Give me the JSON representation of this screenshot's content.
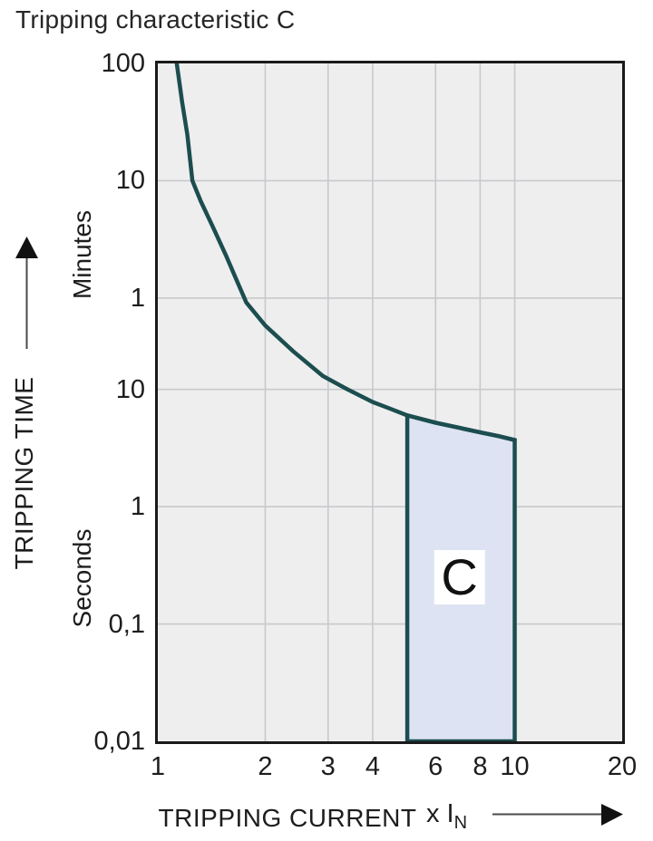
{
  "title": "Tripping characteristic C",
  "colors": {
    "curve": "#1c4d4f",
    "region_fill": "#dde3f2",
    "plot_bg": "#eeeeef",
    "grid": "#c8c9cb",
    "border": "#1a1a1a",
    "arrow_line": "#4a4a4a",
    "text": "#1d1d1d"
  },
  "chart_data": {
    "type": "line",
    "title": "Tripping characteristic C",
    "grid": true,
    "x_axis": {
      "label": "TRIPPING CURRENT",
      "unit_prefix": "x I",
      "unit_sub": "N",
      "scale": "log",
      "range": [
        1,
        20
      ],
      "ticks": [
        {
          "label": "1",
          "value": 1
        },
        {
          "label": "2",
          "value": 2
        },
        {
          "label": "3",
          "value": 3
        },
        {
          "label": "4",
          "value": 4
        },
        {
          "label": "6",
          "value": 6
        },
        {
          "label": "8",
          "value": 8
        },
        {
          "label": "10",
          "value": 10
        },
        {
          "label": "20",
          "value": 20
        }
      ]
    },
    "y_axis": {
      "label": "TRIPPING TIME",
      "scale": "log",
      "unit_labels": [
        "Minutes",
        "Seconds"
      ],
      "range_seconds": [
        6000,
        0.01
      ],
      "ticks": [
        {
          "label": "100",
          "seconds": 6000,
          "unit": "minutes"
        },
        {
          "label": "10",
          "seconds": 600,
          "unit": "minutes"
        },
        {
          "label": "1",
          "seconds": 60,
          "unit": "minutes"
        },
        {
          "label": "10",
          "seconds": 10,
          "unit": "seconds"
        },
        {
          "label": "1",
          "seconds": 1,
          "unit": "seconds"
        },
        {
          "label": "0,1",
          "seconds": 0.1,
          "unit": "seconds"
        },
        {
          "label": "0,01",
          "seconds": 0.01,
          "unit": "seconds"
        }
      ]
    },
    "series": [
      {
        "name": "tripping-curve",
        "points_x_in_t_seconds": [
          [
            1.13,
            6000
          ],
          [
            1.17,
            2800
          ],
          [
            1.21,
            1480
          ],
          [
            1.25,
            600
          ],
          [
            1.32,
            400
          ],
          [
            1.42,
            250
          ],
          [
            1.55,
            140
          ],
          [
            1.65,
            90
          ],
          [
            1.77,
            55
          ],
          [
            2.0,
            35
          ],
          [
            2.4,
            21
          ],
          [
            2.9,
            13
          ],
          [
            3.4,
            10
          ],
          [
            4.0,
            7.8
          ],
          [
            4.5,
            6.8
          ],
          [
            5.0,
            6.0
          ],
          [
            6.0,
            5.2
          ],
          [
            7.0,
            4.7
          ],
          [
            8.0,
            4.3
          ],
          [
            9.0,
            4.0
          ],
          [
            10.0,
            3.7
          ]
        ]
      }
    ],
    "region": {
      "label": "C",
      "x_start": 5,
      "x_end": 10,
      "t_bottom": 0.01,
      "t_top_at_x_start": 6.0,
      "t_top_at_x_end": 3.7,
      "top_follows_curve": true,
      "label_anchor": {
        "x": 7,
        "t": 0.25
      }
    }
  }
}
